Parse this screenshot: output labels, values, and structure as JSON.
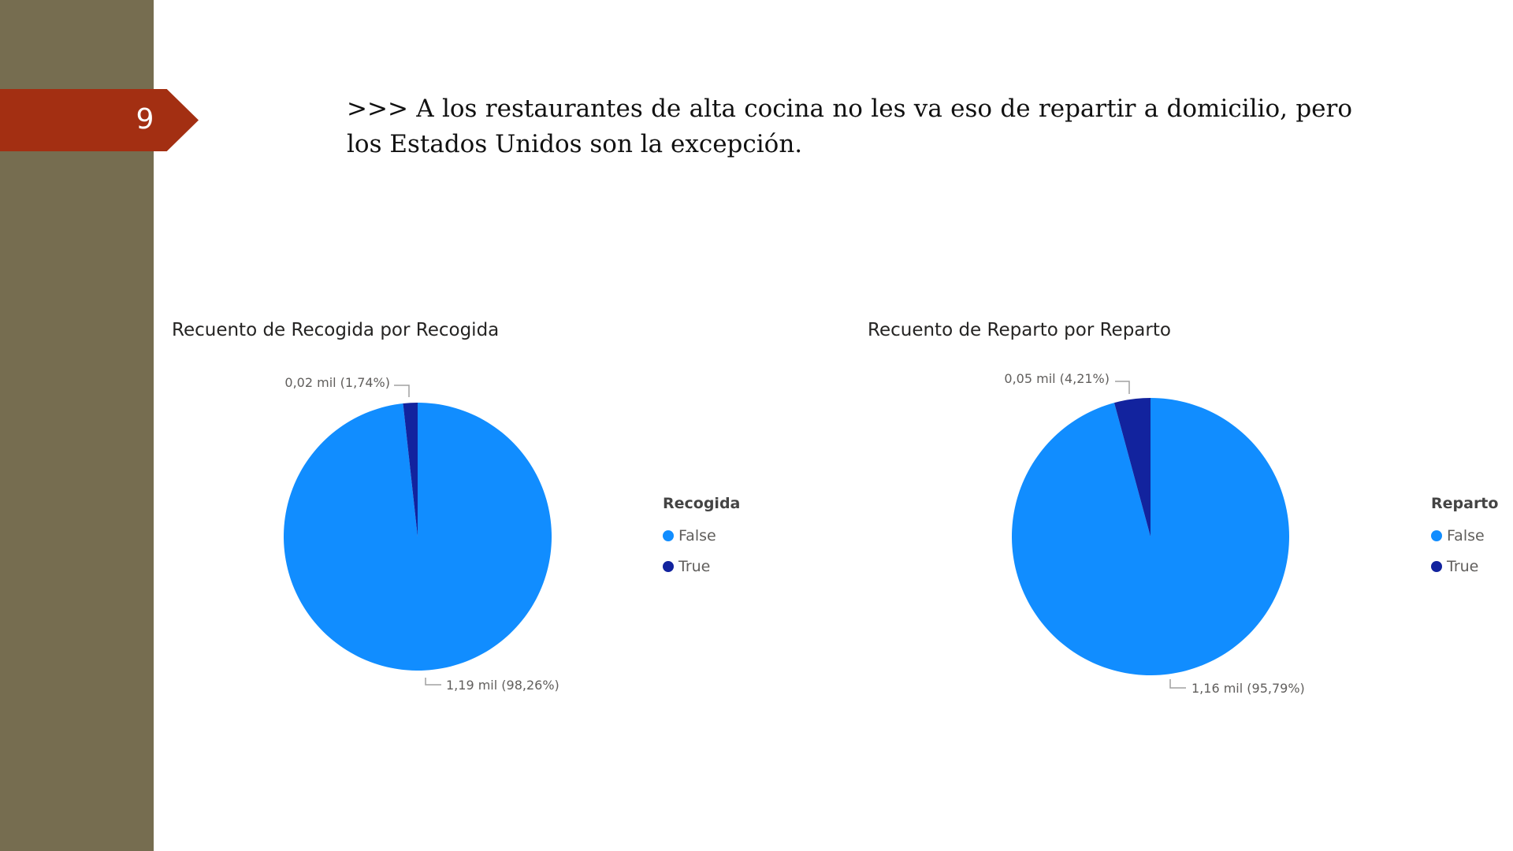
{
  "slide": {
    "page_number": "9",
    "text": ">>> A los restaurantes de alta cocina no les va eso de repartir a domicilio, pero los Estados Unidos son la excepción."
  },
  "colors": {
    "sidebar": "#766d50",
    "tab": "#a32f12",
    "false": "#118dff",
    "true": "#12239e"
  },
  "chart_data": [
    {
      "type": "pie",
      "title": "Recuento de Recogida por Recogida",
      "legend_title": "Recogida",
      "legend_position": "right",
      "categories": [
        "False",
        "True"
      ],
      "values": [
        1190,
        20
      ],
      "percentages": [
        98.26,
        1.74
      ],
      "data_labels": [
        "1,19 mil (98,26%)",
        "0,02 mil (1,74%)"
      ]
    },
    {
      "type": "pie",
      "title": "Recuento de Reparto por Reparto",
      "legend_title": "Reparto",
      "legend_position": "right",
      "categories": [
        "False",
        "True"
      ],
      "values": [
        1160,
        50
      ],
      "percentages": [
        95.79,
        4.21
      ],
      "data_labels": [
        "1,16 mil (95,79%)",
        "0,05 mil (4,21%)"
      ]
    }
  ]
}
